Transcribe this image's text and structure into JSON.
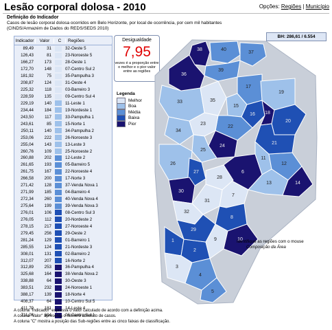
{
  "title": "Lesão corporal dolosa - 2010",
  "options": {
    "label": "Opções:",
    "regions": "Regiões",
    "separator": "|",
    "municipality": "Município"
  },
  "definition": {
    "heading": "Definição do Indicador",
    "text": "Casos de lesão corporal dolosa ocorridos em Belo Horizonte, por local de ocorrência, por cem mil habitantes (CINDS/Armazém de Dados do REDS/SEDS 2010)"
  },
  "table": {
    "headers": [
      "Indicador",
      "Valor",
      "C",
      "Regiões"
    ],
    "rows": [
      [
        "89,49",
        "31",
        "32-Oeste 5",
        "melhor"
      ],
      [
        "126,43",
        "81",
        "23-Noroeste 5",
        "melhor"
      ],
      [
        "166,27",
        "173",
        "28-Oeste 1",
        "melhor"
      ],
      [
        "172,70",
        "148",
        "07-Centro Sul 2",
        "melhor"
      ],
      [
        "181,92",
        "75",
        "35-Pampulha 3",
        "melhor"
      ],
      [
        "208,87",
        "124",
        "31-Oeste 4",
        "melhor"
      ],
      [
        "225,32",
        "118",
        "03-Barreiro 3",
        "melhor"
      ],
      [
        "228,59",
        "135",
        "09-Centro Sul 4",
        "melhor"
      ],
      [
        "229,19",
        "140",
        "11-Leste 1",
        "boa"
      ],
      [
        "234,44",
        "184",
        "19-Nordeste 1",
        "boa"
      ],
      [
        "243,50",
        "117",
        "33-Pampulha 1",
        "boa"
      ],
      [
        "243,61",
        "85",
        "15-Norte 1",
        "boa"
      ],
      [
        "250,11",
        "140",
        "34-Pampulha 2",
        "boa"
      ],
      [
        "253,06",
        "222",
        "26-Noroeste 3",
        "boa"
      ],
      [
        "255,04",
        "143",
        "13-Leste 3",
        "boa"
      ],
      [
        "260,76",
        "109",
        "25-Noroeste 2",
        "boa"
      ],
      [
        "260,88",
        "202",
        "12-Leste 2",
        "media"
      ],
      [
        "261,65",
        "193",
        "05-Barreiro 5",
        "media"
      ],
      [
        "261,75",
        "167",
        "22-Noroeste 4",
        "media"
      ],
      [
        "266,58",
        "200",
        "17-Norte 3",
        "media"
      ],
      [
        "271,42",
        "128",
        "37-Venda Nova 1",
        "media"
      ],
      [
        "271,99",
        "185",
        "04-Barreiro 4",
        "media"
      ],
      [
        "272,34",
        "260",
        "40-Venda Nova 4",
        "media"
      ],
      [
        "275,64",
        "199",
        "39-Venda Nova 3",
        "media"
      ],
      [
        "276,01",
        "106",
        "08-Centro Sul 3",
        "baixa"
      ],
      [
        "276,05",
        "112",
        "20-Nordeste 2",
        "baixa"
      ],
      [
        "278,15",
        "217",
        "27-Noroeste 4",
        "baixa"
      ],
      [
        "279,45",
        "256",
        "29-Oeste 2",
        "baixa"
      ],
      [
        "281,24",
        "129",
        "01-Barreiro 1",
        "baixa"
      ],
      [
        "285,55",
        "124",
        "21-Nordeste 3",
        "baixa"
      ],
      [
        "308,01",
        "131",
        "02-Barreiro 2",
        "baixa"
      ],
      [
        "312,07",
        "207",
        "16-Norte 2",
        "baixa"
      ],
      [
        "312,89",
        "253",
        "36-Pampulha 4",
        "pior"
      ],
      [
        "325,68",
        "164",
        "38-Venda Nova 2",
        "pior"
      ],
      [
        "338,88",
        "64",
        "30-Oeste 3",
        "pior"
      ],
      [
        "383,51",
        "232",
        "24-Noroeste 1",
        "pior"
      ],
      [
        "388,17",
        "139",
        "18-Norte 4",
        "pior"
      ],
      [
        "408,37",
        "64",
        "10-Centro Sul 5",
        "pior"
      ],
      [
        "411,79",
        "181",
        "14-Leste 4",
        "pior"
      ],
      [
        "711,08",
        "604",
        "06-Centro Sul 1",
        "pior"
      ]
    ]
  },
  "colors": {
    "melhor": "#dce6f5",
    "boa": "#9ec1ea",
    "media": "#5b8fd6",
    "baixa": "#1f50b4",
    "pior": "#1a1370",
    "border": "#7f8fb0"
  },
  "bh_box": {
    "label": "BH:",
    "indicator": "286,61",
    "separator": "/",
    "value": "6.554"
  },
  "inequality": {
    "label": "Desigualdade",
    "value": "7,95",
    "caption": "vezes é a proporção entre o melhor e o pior valor entre as regiões"
  },
  "legend": {
    "title": "Legenda",
    "items": [
      {
        "label": "Melhor",
        "class": "melhor"
      },
      {
        "label": "Boa",
        "class": "boa"
      },
      {
        "label": "Média",
        "class": "media"
      },
      {
        "label": "Baixa",
        "class": "baixa"
      },
      {
        "label": "Pior",
        "class": "pior"
      }
    ]
  },
  "map_note": {
    "line1": "Identifique as regiões com o mouse",
    "line2": "Composição da Área"
  },
  "map_labels": [
    "38",
    "40",
    "37",
    "39",
    "36",
    "35",
    "33",
    "34",
    "19",
    "17",
    "15",
    "16",
    "18",
    "20",
    "21",
    "23",
    "22",
    "24",
    "25",
    "26",
    "27",
    "28",
    "30",
    "31",
    "32",
    "29",
    "1",
    "2",
    "3",
    "4",
    "5",
    "6",
    "7",
    "8",
    "9",
    "10",
    "11",
    "12",
    "13",
    "14"
  ],
  "footnotes": [
    "A coluna \"Indicador\" expressa o valor calculado de acordo com a definição acima.",
    "A coluna \"Valor\" apresenta o número absoluto de casos.",
    "A coluna \"C\" mostra a posição das Sub-regiões entre as cinco faixas de classificação."
  ]
}
